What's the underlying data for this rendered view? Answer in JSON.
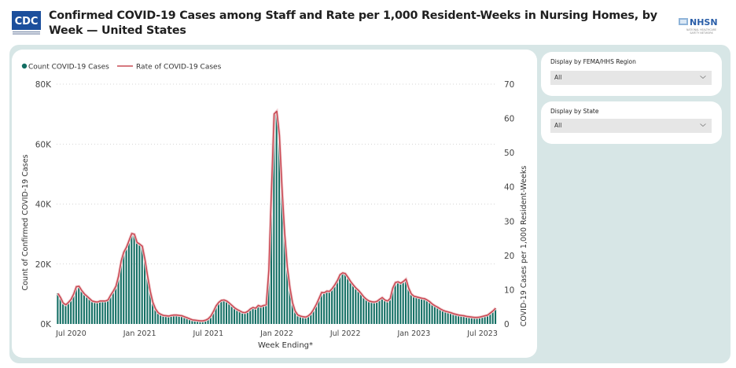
{
  "header": {
    "title": "Confirmed COVID-19 Cases among Staff and Rate per 1,000 Resident-Weeks in Nursing Homes, by Week — United States",
    "left_logo": "CDC",
    "right_logo": "NHSN",
    "right_logo_subtitle": "NATIONAL HEALTHCARE SAFETY NETWORK"
  },
  "slicers": [
    {
      "label": "Display by FEMA/HHS Region",
      "value": "All"
    },
    {
      "label": "Display by State",
      "value": "All"
    }
  ],
  "colors": {
    "bar": "#126e63",
    "line": "#c84b55",
    "canvas": "#d7e6e6"
  },
  "chart_data": {
    "type": "bar",
    "title": "Confirmed COVID-19 Cases among Staff and Rate per 1,000 Resident-Weeks in Nursing Homes, by Week — United States",
    "xlabel": "Week Ending*",
    "ylabel": "Count of Confirmed COVID-19 Cases",
    "y2label": "COVID-19 Cases per 1,000 Resident-Weeks",
    "ylim": [
      0,
      80000
    ],
    "y2lim": [
      0,
      70
    ],
    "yticks": [
      "0K",
      "20K",
      "40K",
      "60K",
      "80K"
    ],
    "y2ticks": [
      "0",
      "10",
      "20",
      "30",
      "40",
      "50",
      "60",
      "70"
    ],
    "xticks": [
      {
        "label": "Jul 2020",
        "week_index": 5
      },
      {
        "label": "Jan 2021",
        "week_index": 31
      },
      {
        "label": "Jul 2021",
        "week_index": 57
      },
      {
        "label": "Jan 2022",
        "week_index": 83
      },
      {
        "label": "Jul 2022",
        "week_index": 109
      },
      {
        "label": "Jan 2023",
        "week_index": 135
      },
      {
        "label": "Jul 2023",
        "week_index": 161
      }
    ],
    "legend": [
      {
        "name": "Count COVID-19 Cases",
        "type": "bar"
      },
      {
        "name": "Rate of COVID-19 Cases",
        "type": "line"
      }
    ],
    "legend_position": "top-left",
    "grid": true,
    "series": [
      {
        "name": "Count COVID-19 Cases",
        "axis": "left",
        "unit": "cases",
        "values": [
          10200,
          8800,
          7000,
          6400,
          7200,
          8200,
          10000,
          12400,
          12600,
          11200,
          10000,
          9300,
          8400,
          7600,
          7400,
          7300,
          7600,
          7700,
          7600,
          8000,
          9600,
          11000,
          12600,
          16000,
          21000,
          24000,
          25000,
          27500,
          30200,
          30000,
          27000,
          26500,
          25500,
          21000,
          16000,
          11000,
          7200,
          5000,
          3800,
          3200,
          2900,
          2700,
          2600,
          2800,
          3000,
          3000,
          2900,
          2700,
          2400,
          2000,
          1700,
          1400,
          1200,
          1100,
          1000,
          1000,
          1200,
          1700,
          2600,
          4200,
          6000,
          7200,
          7900,
          8000,
          7600,
          7000,
          6200,
          5400,
          4800,
          4300,
          3900,
          3800,
          4200,
          5000,
          5500,
          5200,
          6200,
          5800,
          6200,
          6400,
          18000,
          45000,
          70000,
          71000,
          63000,
          45000,
          30000,
          19000,
          12000,
          7000,
          4200,
          3000,
          2600,
          2400,
          2300,
          2700,
          3500,
          4900,
          6500,
          8500,
          10500,
          10400,
          11000,
          10800,
          11800,
          13000,
          14500,
          16500,
          17000,
          16800,
          15500,
          14200,
          13000,
          12000,
          11200,
          10200,
          9000,
          8200,
          7600,
          7400,
          7300,
          7500,
          8200,
          8800,
          8000,
          7600,
          8500,
          12000,
          13800,
          14000,
          13600,
          14200,
          15000,
          12000,
          10000,
          9200,
          9000,
          8800,
          8600,
          8400,
          8000,
          7400,
          6600,
          6000,
          5600,
          5000,
          4600,
          4200,
          4000,
          3800,
          3400,
          3200,
          3000,
          2900,
          2700,
          2500,
          2400,
          2300,
          2200,
          2200,
          2300,
          2500,
          2700,
          3000,
          3600,
          4300,
          5200
        ]
      },
      {
        "name": "Rate of COVID-19 Cases",
        "axis": "right",
        "unit": "per 1,000 resident-weeks",
        "values": [
          8.9,
          7.7,
          6.1,
          5.6,
          6.3,
          7.2,
          8.8,
          10.9,
          11.0,
          9.8,
          8.8,
          8.1,
          7.4,
          6.7,
          6.5,
          6.4,
          6.7,
          6.7,
          6.7,
          7.0,
          8.4,
          9.6,
          11.0,
          14.0,
          18.4,
          21.0,
          22.4,
          24.4,
          26.4,
          26.2,
          23.8,
          23.3,
          22.7,
          18.8,
          14.0,
          9.6,
          6.3,
          4.4,
          3.3,
          2.8,
          2.5,
          2.4,
          2.3,
          2.5,
          2.6,
          2.6,
          2.5,
          2.4,
          2.1,
          1.8,
          1.5,
          1.2,
          1.1,
          1.0,
          0.9,
          0.9,
          1.1,
          1.5,
          2.3,
          3.7,
          5.3,
          6.3,
          6.9,
          7.0,
          6.7,
          6.1,
          5.4,
          4.7,
          4.2,
          3.8,
          3.4,
          3.3,
          3.7,
          4.4,
          4.8,
          4.6,
          5.4,
          5.1,
          5.4,
          5.6,
          15.8,
          39.4,
          61.3,
          62.1,
          55.1,
          39.4,
          26.3,
          16.6,
          10.5,
          6.1,
          3.7,
          2.6,
          2.3,
          2.1,
          2.0,
          2.4,
          3.1,
          4.3,
          5.7,
          7.4,
          9.2,
          9.1,
          9.6,
          9.5,
          10.3,
          11.4,
          12.7,
          14.4,
          14.9,
          14.7,
          13.6,
          12.4,
          11.4,
          10.5,
          9.8,
          8.9,
          7.9,
          7.2,
          6.7,
          6.5,
          6.4,
          6.6,
          7.2,
          7.7,
          7.0,
          6.7,
          7.4,
          10.5,
          12.1,
          12.3,
          11.9,
          12.4,
          13.1,
          10.5,
          8.8,
          8.1,
          7.9,
          7.7,
          7.5,
          7.4,
          7.0,
          6.5,
          5.8,
          5.3,
          4.9,
          4.4,
          4.0,
          3.7,
          3.5,
          3.3,
          3.0,
          2.8,
          2.6,
          2.5,
          2.4,
          2.2,
          2.1,
          2.0,
          1.9,
          1.9,
          2.0,
          2.2,
          2.4,
          2.6,
          3.2,
          3.8,
          4.6
        ]
      }
    ]
  }
}
